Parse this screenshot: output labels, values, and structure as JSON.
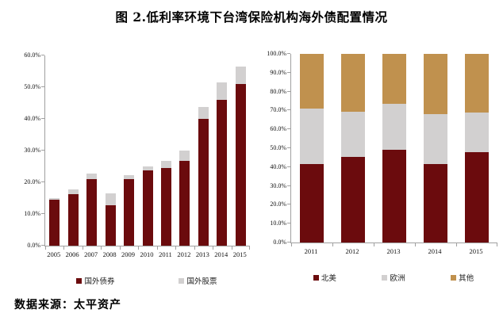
{
  "title": "图 2.低利率环境下台湾保险机构海外债配置情况",
  "source": "数据来源：太平资产",
  "colors": {
    "dark_red": "#6B0B0D",
    "gray": "#D2D0D0",
    "tan": "#C0914E",
    "axis": "#A0A0A0"
  },
  "chart_data": [
    {
      "type": "bar",
      "stacked": true,
      "title": "",
      "categories": [
        "2005",
        "2006",
        "2007",
        "2008",
        "2009",
        "2010",
        "2011",
        "2012",
        "2013",
        "2014",
        "2015"
      ],
      "series": [
        {
          "name": "国外债券",
          "color": "#6B0B0D",
          "values": [
            14.5,
            16.2,
            21.0,
            12.7,
            21.0,
            23.8,
            24.4,
            26.7,
            39.9,
            46.1,
            50.9
          ]
        },
        {
          "name": "国外股票",
          "color": "#D2D0D0",
          "values": [
            0.5,
            1.6,
            1.8,
            3.8,
            1.2,
            1.1,
            2.3,
            3.3,
            3.8,
            5.3,
            5.7
          ]
        }
      ],
      "ylabel": "",
      "xlabel": "",
      "ylim": [
        0,
        60
      ],
      "yticks": [
        "0.0%",
        "10.0%",
        "20.0%",
        "30.0%",
        "40.0%",
        "50.0%",
        "60.0%"
      ],
      "grid": false,
      "legend_position": "bottom"
    },
    {
      "type": "bar",
      "stacked": true,
      "title": "",
      "categories": [
        "2011",
        "2012",
        "2013",
        "2014",
        "2015"
      ],
      "series": [
        {
          "name": "北美",
          "color": "#6B0B0D",
          "values": [
            41.5,
            45.5,
            49.0,
            41.5,
            48.0
          ]
        },
        {
          "name": "欧洲",
          "color": "#D2D0D0",
          "values": [
            29.5,
            24.0,
            24.5,
            26.5,
            21.0
          ]
        },
        {
          "name": "其他",
          "color": "#C0914E",
          "values": [
            29.0,
            30.5,
            26.5,
            32.0,
            31.0
          ]
        }
      ],
      "ylabel": "",
      "xlabel": "",
      "ylim": [
        0,
        100
      ],
      "yticks": [
        "0.0%",
        "10.0%",
        "20.0%",
        "30.0%",
        "40.0%",
        "50.0%",
        "60.0%",
        "70.0%",
        "80.0%",
        "90.0%",
        "100.0%"
      ],
      "grid": false,
      "legend_position": "bottom"
    }
  ]
}
